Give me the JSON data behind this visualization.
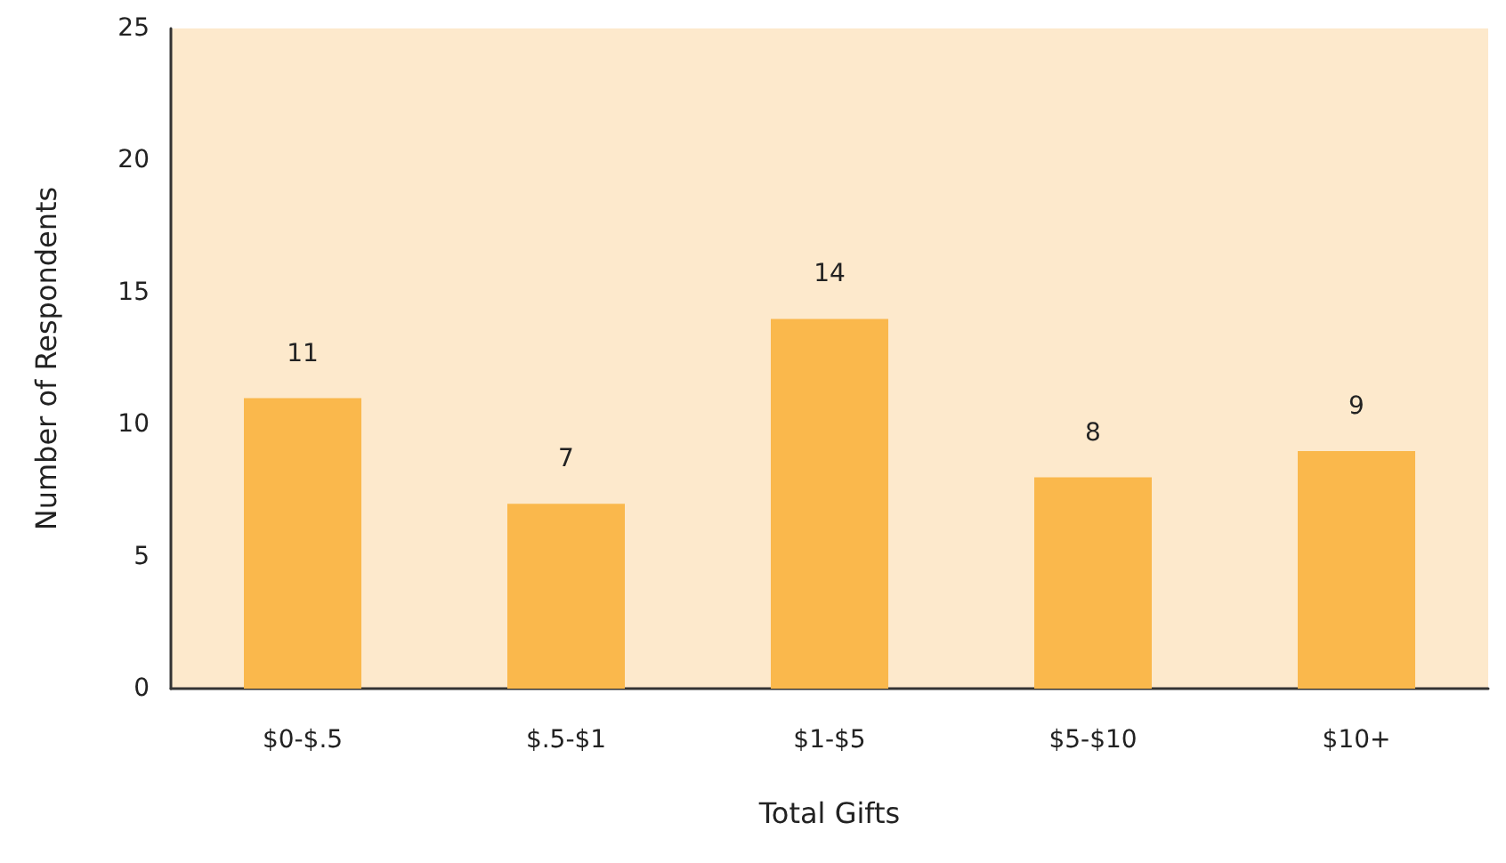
{
  "chart_data": {
    "type": "bar",
    "xlabel": "Total Gifts",
    "ylabel": "Number of Respondents",
    "categories": [
      "$0-$.5",
      "$.5-$1",
      "$1-$5",
      "$5-$10",
      "$10+"
    ],
    "values": [
      11,
      7,
      14,
      8,
      9
    ],
    "color": "#fab84c",
    "data_labels": true,
    "ylim": [
      0,
      25
    ],
    "yticks": [
      0,
      5,
      10,
      15,
      20,
      25
    ],
    "grid": false
  }
}
